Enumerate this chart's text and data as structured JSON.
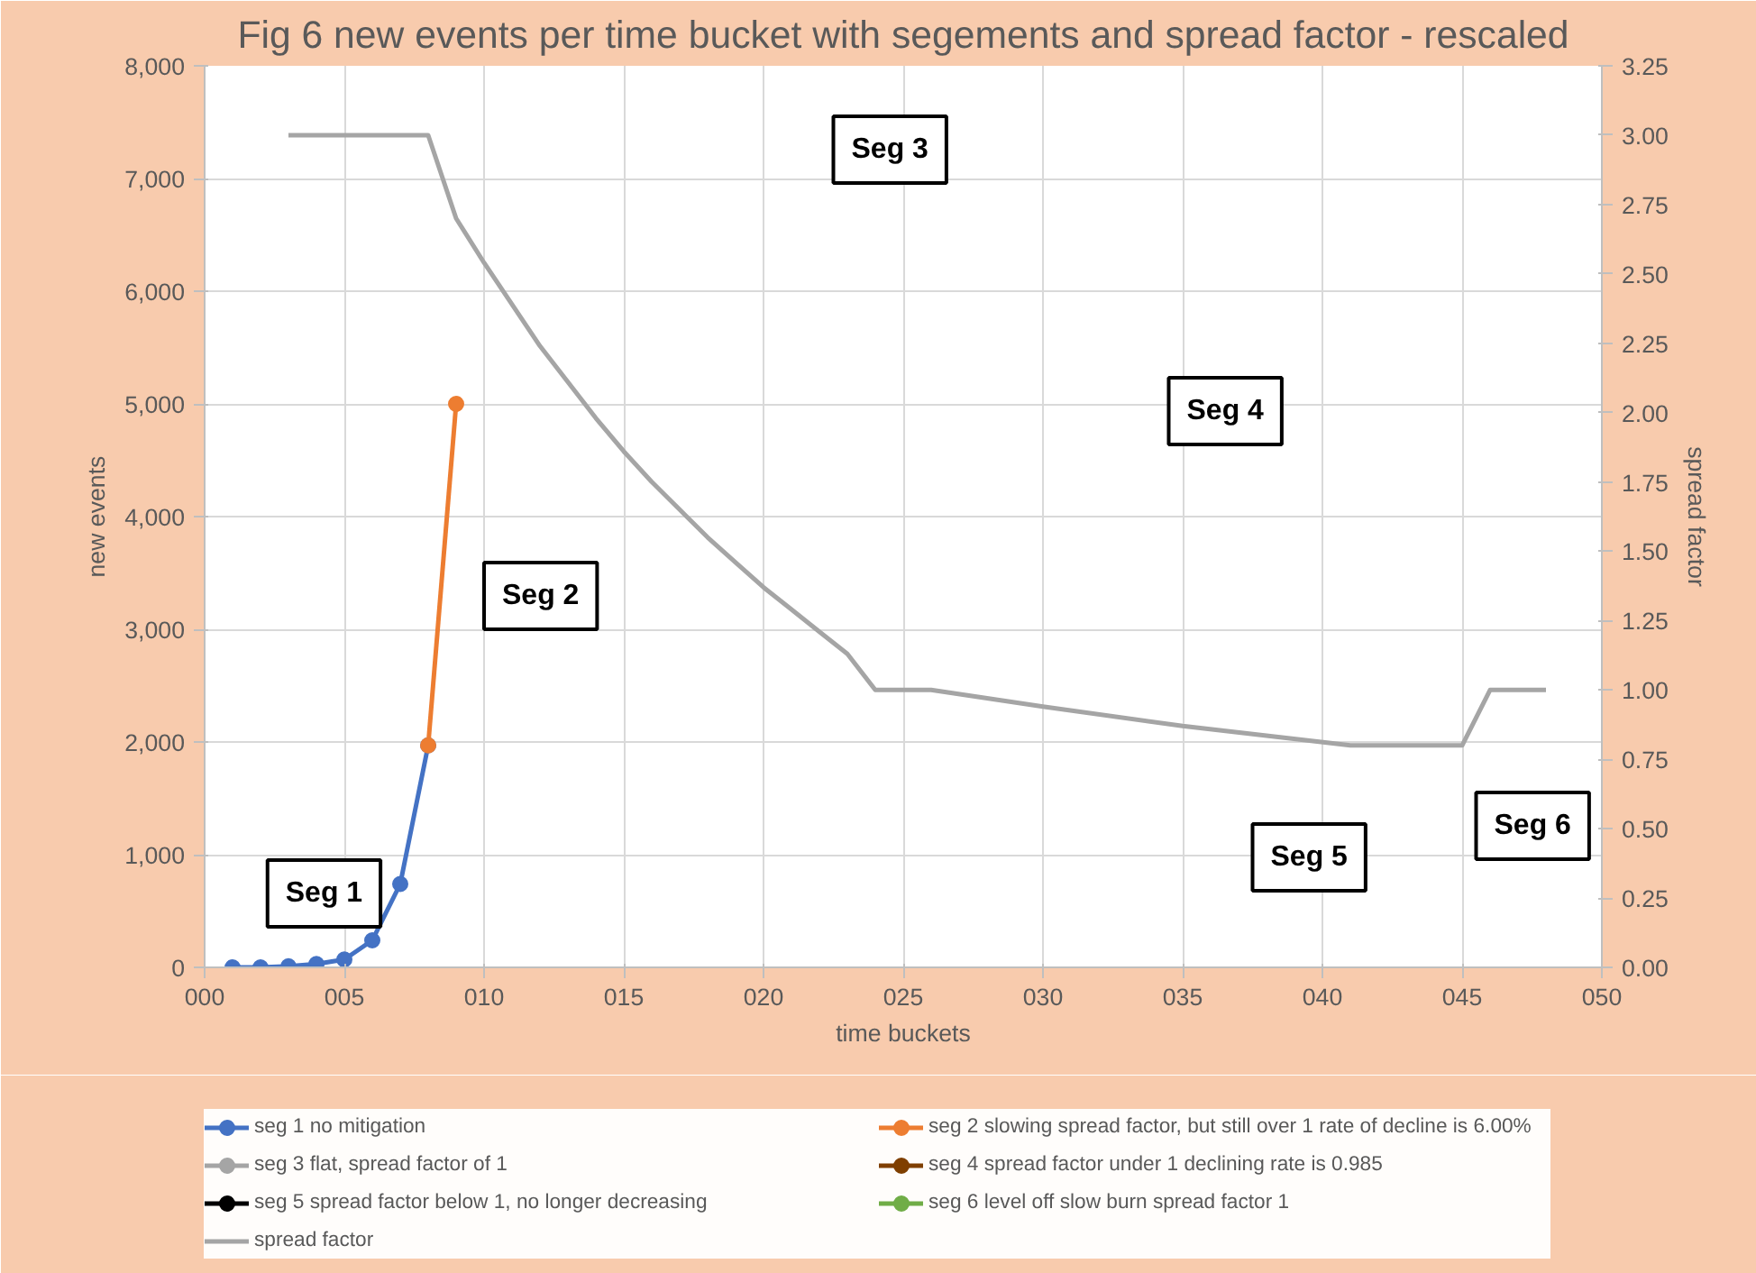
{
  "chart_data": {
    "type": "line",
    "title": "Fig 6 new events per time bucket with segements and spread factor - rescaled",
    "xlabel": "time buckets",
    "ylabel": "new events",
    "y2label": "spread factor",
    "xlim": [
      0,
      50
    ],
    "xticks": [
      {
        "value": 0,
        "label": "000"
      },
      {
        "value": 5,
        "label": "005"
      },
      {
        "value": 10,
        "label": "010"
      },
      {
        "value": 15,
        "label": "015"
      },
      {
        "value": 20,
        "label": "020"
      },
      {
        "value": 25,
        "label": "025"
      },
      {
        "value": 30,
        "label": "030"
      },
      {
        "value": 35,
        "label": "035"
      },
      {
        "value": 40,
        "label": "040"
      },
      {
        "value": 45,
        "label": "045"
      },
      {
        "value": 50,
        "label": "050"
      }
    ],
    "ylim": [
      0,
      8000
    ],
    "yticks": [
      {
        "value": 0,
        "label": "0"
      },
      {
        "value": 1000,
        "label": "1,000"
      },
      {
        "value": 2000,
        "label": "2,000"
      },
      {
        "value": 3000,
        "label": "3,000"
      },
      {
        "value": 4000,
        "label": "4,000"
      },
      {
        "value": 5000,
        "label": "5,000"
      },
      {
        "value": 6000,
        "label": "6,000"
      },
      {
        "value": 7000,
        "label": "7,000"
      },
      {
        "value": 8000,
        "label": "8,000"
      }
    ],
    "y2lim": [
      0,
      3.25
    ],
    "y2ticks": [
      {
        "value": 0,
        "label": "0.00"
      },
      {
        "value": 0.25,
        "label": "0.25"
      },
      {
        "value": 0.5,
        "label": "0.50"
      },
      {
        "value": 0.75,
        "label": "0.75"
      },
      {
        "value": 1,
        "label": "1.00"
      },
      {
        "value": 1.25,
        "label": "1.25"
      },
      {
        "value": 1.5,
        "label": "1.50"
      },
      {
        "value": 1.75,
        "label": "1.75"
      },
      {
        "value": 2,
        "label": "2.00"
      },
      {
        "value": 2.25,
        "label": "2.25"
      },
      {
        "value": 2.5,
        "label": "2.50"
      },
      {
        "value": 2.75,
        "label": "2.75"
      },
      {
        "value": 3,
        "label": "3.00"
      },
      {
        "value": 3.25,
        "label": "3.25"
      }
    ],
    "grid": true,
    "legend": "bottom",
    "annotations": [
      "Seg 1",
      "Seg 2",
      "Seg 3",
      "Seg 4",
      "Seg 5",
      "Seg 6"
    ],
    "series": [
      {
        "name": "seg 1 no mitigation",
        "color": "#4472c4",
        "marker": "circle",
        "x": [
          1,
          2,
          3,
          4,
          5,
          6,
          7,
          8
        ],
        "values": [
          0,
          0,
          10,
          30,
          70,
          240,
          740,
          1970
        ]
      },
      {
        "name": "seg 2 slowing spread factor, but still over 1 rate of decline is 6.00%",
        "color": "#ed7d31",
        "marker": "circle",
        "x": [
          8,
          9
        ],
        "values": [
          1970,
          5000
        ]
      },
      {
        "name": "seg 3 flat, spread factor of 1",
        "color": "#a5a5a5",
        "marker": "circle"
      },
      {
        "name": "seg 4 spread factor under 1 declining rate is 0.985",
        "color": "#7f3f00",
        "marker": "circle"
      },
      {
        "name": "seg 5 spread factor below 1, no longer decreasing",
        "color": "#000000",
        "marker": "circle"
      },
      {
        "name": "seg 6 level off slow burn spread factor 1",
        "color": "#70ad47",
        "marker": "circle"
      },
      {
        "name": "spread factor",
        "color": "#a5a5a5",
        "marker": "none",
        "axis": "y2",
        "x": [
          3,
          4,
          5,
          6,
          7,
          8,
          9,
          10,
          11,
          12,
          13,
          14,
          15,
          16,
          17,
          18,
          19,
          20,
          21,
          22,
          23,
          24,
          26,
          30,
          35,
          41,
          45,
          46,
          48
        ],
        "values": [
          3.0,
          3.0,
          3.0,
          3.0,
          3.0,
          3.0,
          2.7,
          2.54,
          2.39,
          2.24,
          2.11,
          1.98,
          1.86,
          1.75,
          1.65,
          1.55,
          1.46,
          1.37,
          1.29,
          1.21,
          1.13,
          1.0,
          1.0,
          0.94,
          0.87,
          0.8,
          0.8,
          1.0,
          1.0
        ]
      }
    ]
  }
}
